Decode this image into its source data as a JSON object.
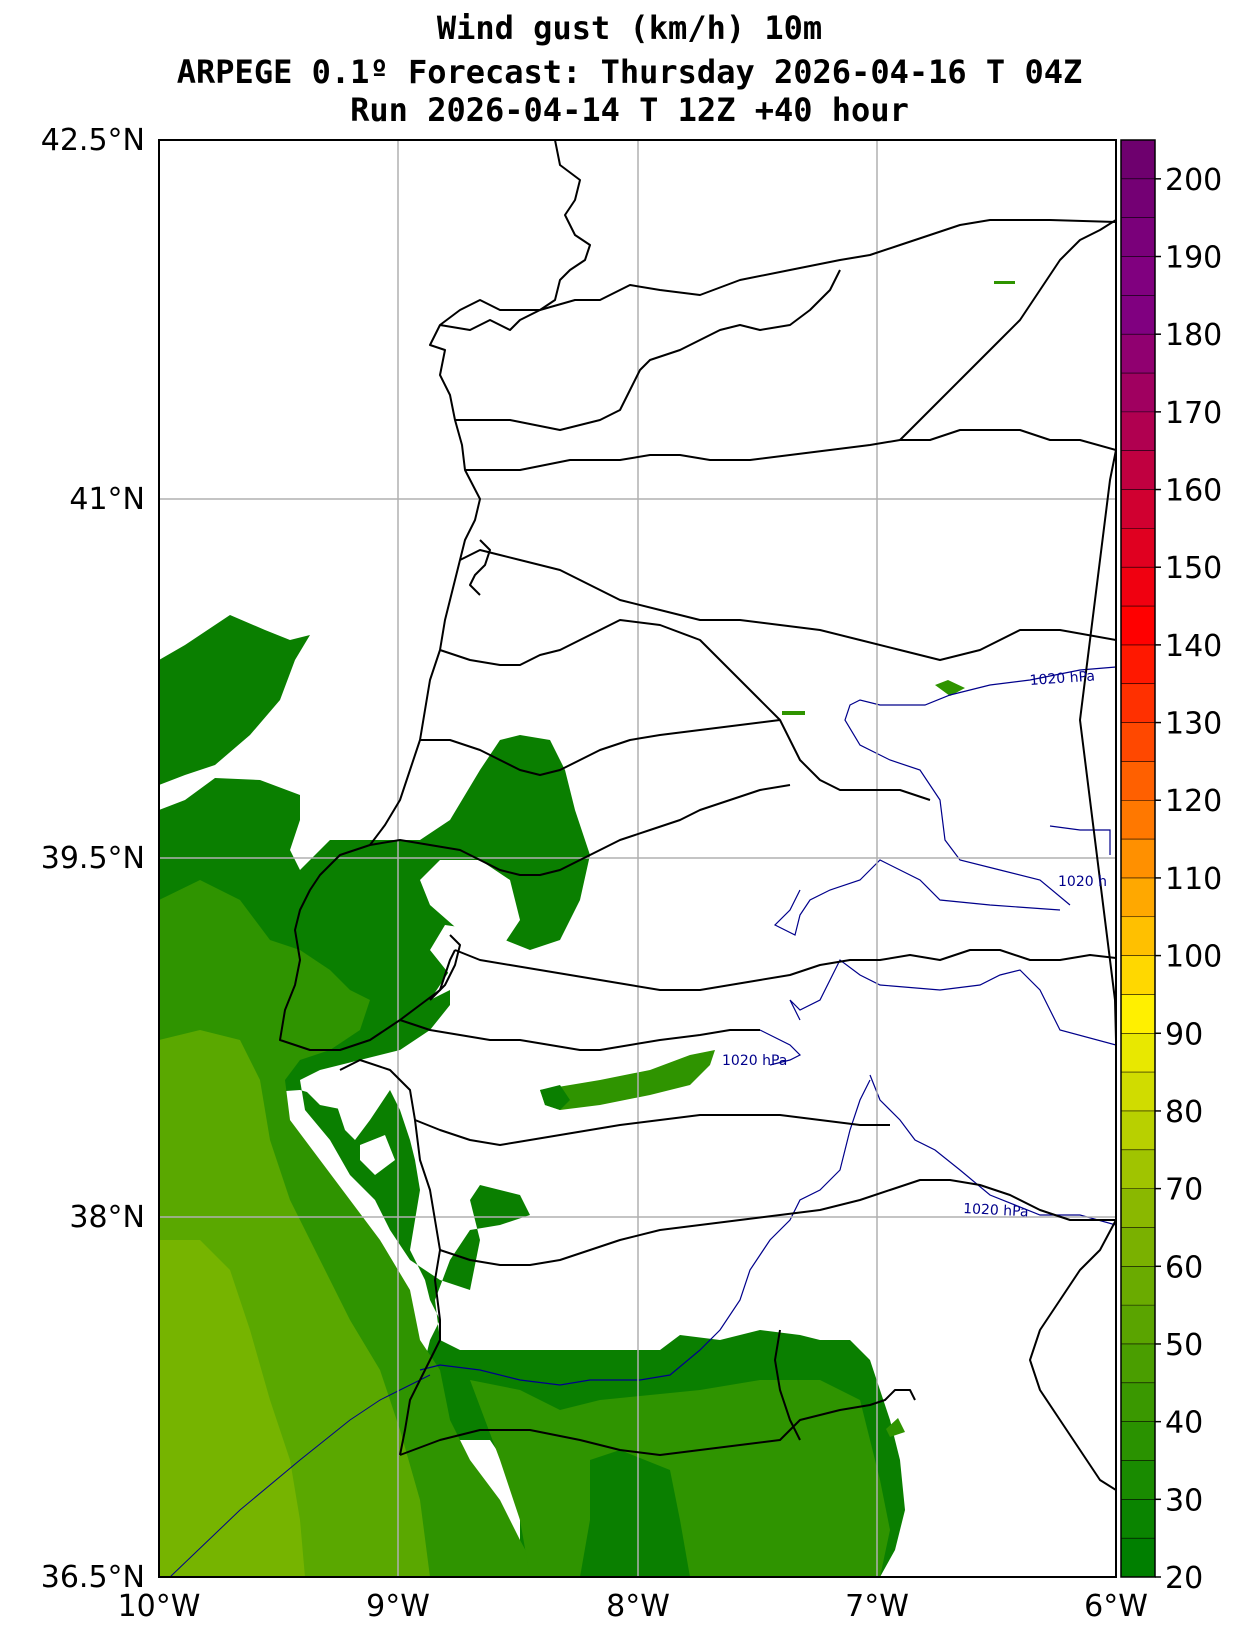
{
  "title": {
    "line1": "Wind gust (km/h) 10m",
    "line2": "ARPEGE 0.1º Forecast: Thursday 2026-04-16 T 04Z",
    "line3": "Run 2026-04-14 T 12Z +40 hour"
  },
  "axes": {
    "lat_ticks": [
      "42.5°N",
      "41°N",
      "39.5°N",
      "38°N",
      "36.5°N"
    ],
    "lon_ticks": [
      "10°W",
      "9°W",
      "8°W",
      "7°W",
      "6°W"
    ]
  },
  "isobar_labels": [
    "1020 hPa",
    "1020 h",
    "1020 hPa",
    "1020 hPa"
  ],
  "colorbar": {
    "labels": [
      "200",
      "190",
      "180",
      "170",
      "160",
      "150",
      "140",
      "130",
      "120",
      "110",
      "100",
      "90",
      "80",
      "70",
      "60",
      "50",
      "40",
      "30",
      "20"
    ],
    "min": 20,
    "max": 205,
    "colors": [
      "#007f00",
      "#0a8400",
      "#198b00",
      "#2a9200",
      "#3a9800",
      "#4a9e00",
      "#5aa400",
      "#6aab00",
      "#7ab100",
      "#8ab800",
      "#a0c400",
      "#b8d000",
      "#d0dc00",
      "#e8e800",
      "#fff000",
      "#ffd800",
      "#ffc000",
      "#ffa800",
      "#ff9000",
      "#ff7800",
      "#ff6000",
      "#ff4800",
      "#ff3000",
      "#ff1800",
      "#ff0000",
      "#f00010",
      "#e00020",
      "#d00030",
      "#c00040",
      "#b00050",
      "#a00060",
      "#900070",
      "#800080",
      "#80007f",
      "#7a007a",
      "#740074",
      "#6e006e"
    ]
  },
  "colors": {
    "gust_dark": "#0a7f00",
    "gust_mid": "#2f9400",
    "gust_light": "#5aa800",
    "gust_lighter": "#76b400",
    "isobar": "#00008b",
    "grid": "#b0b0b0"
  }
}
